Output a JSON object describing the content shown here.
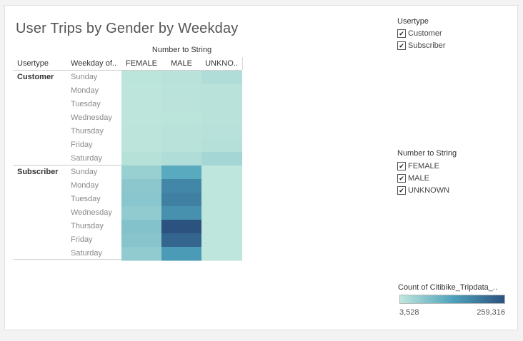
{
  "chart_data": {
    "type": "heatmap",
    "title": "User Trips by Gender by Weekday",
    "column_group_header": "Number to String",
    "row_headers": [
      "Usertype",
      "Weekday of.."
    ],
    "columns": [
      "FEMALE",
      "MALE",
      "UNKNO.."
    ],
    "row_groups": [
      {
        "name": "Customer",
        "rows": [
          "Sunday",
          "Monday",
          "Tuesday",
          "Wednesday",
          "Thursday",
          "Friday",
          "Saturday"
        ],
        "values": [
          [
            8000,
            12000,
            20000
          ],
          [
            6000,
            9000,
            12000
          ],
          [
            5500,
            8500,
            11000
          ],
          [
            5000,
            8000,
            10000
          ],
          [
            6500,
            10000,
            13000
          ],
          [
            7500,
            11500,
            15000
          ],
          [
            14000,
            20000,
            35000
          ]
        ]
      },
      {
        "name": "Subscriber",
        "rows": [
          "Sunday",
          "Monday",
          "Tuesday",
          "Wednesday",
          "Thursday",
          "Friday",
          "Saturday"
        ],
        "values": [
          [
            48000,
            120000,
            3528
          ],
          [
            62000,
            175000,
            3800
          ],
          [
            64000,
            185000,
            3900
          ],
          [
            55000,
            160000,
            3700
          ],
          [
            72000,
            259316,
            3900
          ],
          [
            68000,
            230000,
            3800
          ],
          [
            56000,
            145000,
            3600
          ]
        ]
      }
    ],
    "color_legend": {
      "title": "Count of Citibike_Tripdata_..",
      "min": 3528,
      "max": 259316,
      "min_label": "3,528",
      "max_label": "259,316",
      "color_low": "#bfe6dc",
      "color_mid": "#4fa3bc",
      "color_high": "#2c5280"
    }
  },
  "filters": {
    "usertype": {
      "title": "Usertype",
      "items": [
        {
          "label": "Customer",
          "checked": true,
          "mark": "✔"
        },
        {
          "label": "Subscriber",
          "checked": true,
          "mark": "✔"
        }
      ]
    },
    "gender": {
      "title": "Number to String",
      "items": [
        {
          "label": "FEMALE",
          "checked": true,
          "mark": "✔"
        },
        {
          "label": "MALE",
          "checked": true,
          "mark": "✔"
        },
        {
          "label": "UNKNOWN",
          "checked": true,
          "mark": "✔"
        }
      ]
    }
  }
}
